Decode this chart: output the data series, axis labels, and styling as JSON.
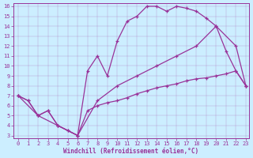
{
  "xlabel": "Windchill (Refroidissement éolien,°C)",
  "bg_color": "#cceeff",
  "line_color": "#993399",
  "xlim": [
    -0.5,
    23.3
  ],
  "ylim": [
    2.7,
    16.3
  ],
  "xticks": [
    0,
    1,
    2,
    3,
    4,
    5,
    6,
    7,
    8,
    9,
    10,
    11,
    12,
    13,
    14,
    15,
    16,
    17,
    18,
    19,
    20,
    21,
    22,
    23
  ],
  "yticks": [
    3,
    4,
    5,
    6,
    7,
    8,
    9,
    10,
    11,
    12,
    13,
    14,
    15,
    16
  ],
  "line1_x": [
    0,
    1,
    2,
    3,
    4,
    5,
    6,
    7,
    8,
    9,
    10,
    11,
    12,
    13,
    14,
    15,
    16,
    17,
    18,
    19,
    20,
    21,
    22,
    23
  ],
  "line1_y": [
    7.0,
    6.5,
    5.0,
    5.5,
    4.0,
    3.5,
    3.0,
    9.5,
    11.0,
    9.0,
    12.5,
    14.5,
    15.0,
    16.0,
    16.0,
    15.5,
    16.0,
    15.8,
    15.5,
    14.8,
    14.0,
    11.5,
    9.5,
    8.0
  ],
  "line2_x": [
    0,
    2,
    4,
    6,
    8,
    10,
    12,
    14,
    16,
    18,
    20,
    22,
    23
  ],
  "line2_y": [
    7.0,
    5.0,
    4.0,
    3.0,
    6.5,
    8.0,
    9.0,
    10.0,
    11.0,
    12.0,
    14.0,
    12.0,
    8.0
  ],
  "line3_x": [
    0,
    1,
    2,
    3,
    4,
    5,
    6,
    7,
    8,
    9,
    10,
    11,
    12,
    13,
    14,
    15,
    16,
    17,
    18,
    19,
    20,
    21,
    22,
    23
  ],
  "line3_y": [
    7.0,
    6.5,
    5.0,
    5.5,
    4.0,
    3.5,
    3.0,
    5.5,
    6.0,
    6.3,
    6.5,
    6.8,
    7.2,
    7.5,
    7.8,
    8.0,
    8.2,
    8.5,
    8.7,
    8.8,
    9.0,
    9.2,
    9.5,
    8.0
  ]
}
